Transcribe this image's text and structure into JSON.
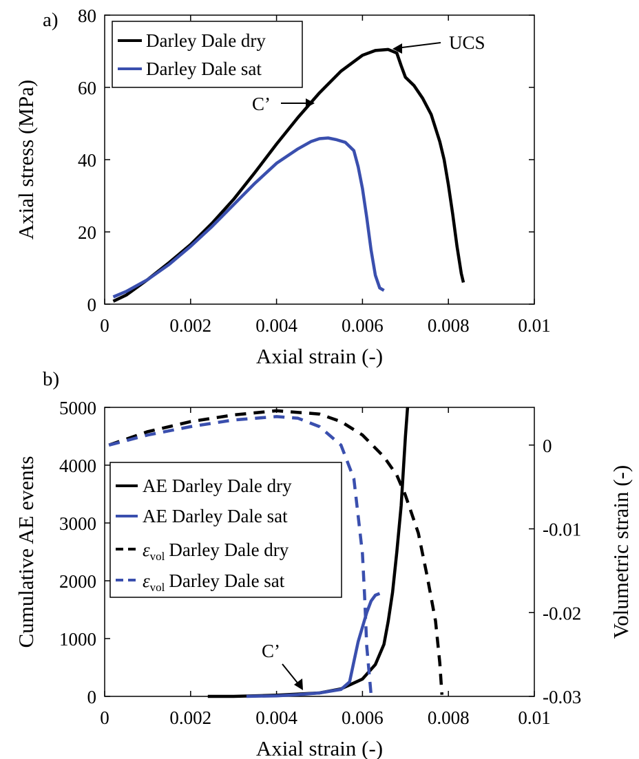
{
  "chart_data": [
    {
      "panel_label": "a)",
      "type": "line",
      "xlabel": "Axial strain (-)",
      "ylabel": "Axial stress (MPa)",
      "xlim": [
        0,
        0.01
      ],
      "ylim": [
        0,
        80
      ],
      "xticks": [
        "0",
        "0.002",
        "0.004",
        "0.006",
        "0.008",
        "0.01"
      ],
      "xtick_values": [
        0,
        0.002,
        0.004,
        0.006,
        0.008,
        0.01
      ],
      "yticks": [
        "0",
        "20",
        "40",
        "60",
        "80"
      ],
      "ytick_values": [
        0,
        20,
        40,
        60,
        80
      ],
      "legend_position": "top-left",
      "series": [
        {
          "name": "Darley Dale dry",
          "color": "#000000",
          "style": "solid",
          "x": [
            0.0002,
            0.0005,
            0.001,
            0.0015,
            0.002,
            0.0025,
            0.003,
            0.0035,
            0.004,
            0.0045,
            0.005,
            0.0055,
            0.006,
            0.0063,
            0.0066,
            0.0068,
            0.0069,
            0.007,
            0.0072,
            0.0074,
            0.0076,
            0.0078,
            0.0079,
            0.008,
            0.0081,
            0.0082,
            0.0083,
            0.00835
          ],
          "y": [
            0.8,
            2.5,
            6.8,
            11.5,
            16.5,
            22.4,
            29.0,
            36.5,
            44.3,
            51.7,
            58.5,
            64.5,
            68.9,
            70.2,
            70.5,
            69.5,
            66.0,
            62.8,
            60.5,
            57.0,
            52.5,
            45.0,
            40.0,
            33.0,
            25.0,
            16.0,
            8.5,
            6.0
          ]
        },
        {
          "name": "Darley Dale sat",
          "color": "#3a4fae",
          "style": "solid",
          "x": [
            0.0002,
            0.0005,
            0.001,
            0.0015,
            0.002,
            0.0025,
            0.003,
            0.0035,
            0.004,
            0.0045,
            0.0048,
            0.005,
            0.0052,
            0.0054,
            0.0056,
            0.0058,
            0.0059,
            0.006,
            0.0061,
            0.0062,
            0.0063,
            0.0064,
            0.0065
          ],
          "y": [
            2.0,
            3.5,
            6.8,
            11.0,
            16.0,
            21.5,
            27.5,
            33.5,
            39.0,
            43.0,
            45.0,
            45.8,
            46.0,
            45.5,
            44.8,
            42.5,
            38.0,
            32.0,
            24.0,
            15.0,
            8.0,
            4.5,
            3.8
          ]
        }
      ],
      "annotations": [
        {
          "text": "UCS",
          "target_x": 0.0066,
          "target_y": 70.5
        },
        {
          "text": "C’",
          "target_x": 0.0049,
          "target_y": 57.0
        }
      ]
    },
    {
      "panel_label": "b)",
      "type": "line",
      "xlabel": "Axial strain (-)",
      "ylabel": "Cumulative AE events",
      "y2label": "Volumetric strain (-)",
      "xlim": [
        0,
        0.01
      ],
      "ylim": [
        0,
        5000
      ],
      "y2lim": [
        -0.03,
        0.0045
      ],
      "xticks": [
        "0",
        "0.002",
        "0.004",
        "0.006",
        "0.008",
        "0.01"
      ],
      "xtick_values": [
        0,
        0.002,
        0.004,
        0.006,
        0.008,
        0.01
      ],
      "yticks": [
        "0",
        "1000",
        "2000",
        "3000",
        "4000",
        "5000"
      ],
      "ytick_values": [
        0,
        1000,
        2000,
        3000,
        4000,
        5000
      ],
      "y2ticks": [
        "0",
        "-0.01",
        "-0.02",
        "-0.03"
      ],
      "y2tick_values": [
        0,
        -0.01,
        -0.02,
        -0.03
      ],
      "legend_position": "center-left",
      "series": [
        {
          "name": "AE Darley Dale dry",
          "legend_prefix": "",
          "color": "#000000",
          "style": "solid",
          "axis": "left",
          "x": [
            0.0024,
            0.003,
            0.004,
            0.005,
            0.0055,
            0.006,
            0.0063,
            0.0065,
            0.0066,
            0.0067,
            0.0068,
            0.0069,
            0.00695,
            0.007,
            0.00705
          ],
          "y": [
            0,
            0,
            20,
            60,
            130,
            300,
            550,
            900,
            1300,
            1800,
            2500,
            3300,
            3900,
            4500,
            5000
          ]
        },
        {
          "name": "AE Darley Dale sat",
          "legend_prefix": "",
          "color": "#3a4fae",
          "style": "solid",
          "axis": "left",
          "x": [
            0.0033,
            0.004,
            0.0045,
            0.005,
            0.0055,
            0.0057,
            0.0058,
            0.0059,
            0.006,
            0.0061,
            0.0062,
            0.0063,
            0.0064
          ],
          "y": [
            0,
            10,
            30,
            60,
            120,
            250,
            600,
            950,
            1200,
            1450,
            1650,
            1750,
            1780
          ]
        },
        {
          "name": "Darley Dale dry",
          "legend_prefix": "ε",
          "legend_sub": "vol",
          "color": "#000000",
          "style": "dashed",
          "axis": "right",
          "x": [
            0.0001,
            0.001,
            0.002,
            0.003,
            0.004,
            0.005,
            0.0055,
            0.006,
            0.0065,
            0.0068,
            0.007,
            0.0073,
            0.0075,
            0.0077,
            0.0078,
            0.00785
          ],
          "y": [
            0.0,
            0.0016,
            0.0028,
            0.0036,
            0.0041,
            0.0037,
            0.0028,
            0.0012,
            -0.0014,
            -0.0036,
            -0.006,
            -0.0105,
            -0.0155,
            -0.021,
            -0.026,
            -0.0298
          ]
        },
        {
          "name": "Darley Dale sat",
          "legend_prefix": "ε",
          "legend_sub": "vol",
          "color": "#3a4fae",
          "style": "dashed",
          "axis": "right",
          "x": [
            0.0001,
            0.001,
            0.002,
            0.003,
            0.004,
            0.0045,
            0.005,
            0.0055,
            0.0058,
            0.0059,
            0.006,
            0.00605,
            0.0061,
            0.0062
          ],
          "y": [
            0.0,
            0.0012,
            0.0022,
            0.003,
            0.0034,
            0.0032,
            0.0022,
            0.0,
            -0.004,
            -0.0085,
            -0.013,
            -0.018,
            -0.024,
            -0.0298
          ]
        }
      ],
      "annotations": [
        {
          "text": "C’",
          "target_x": 0.0046,
          "target_y": 30
        }
      ]
    }
  ]
}
